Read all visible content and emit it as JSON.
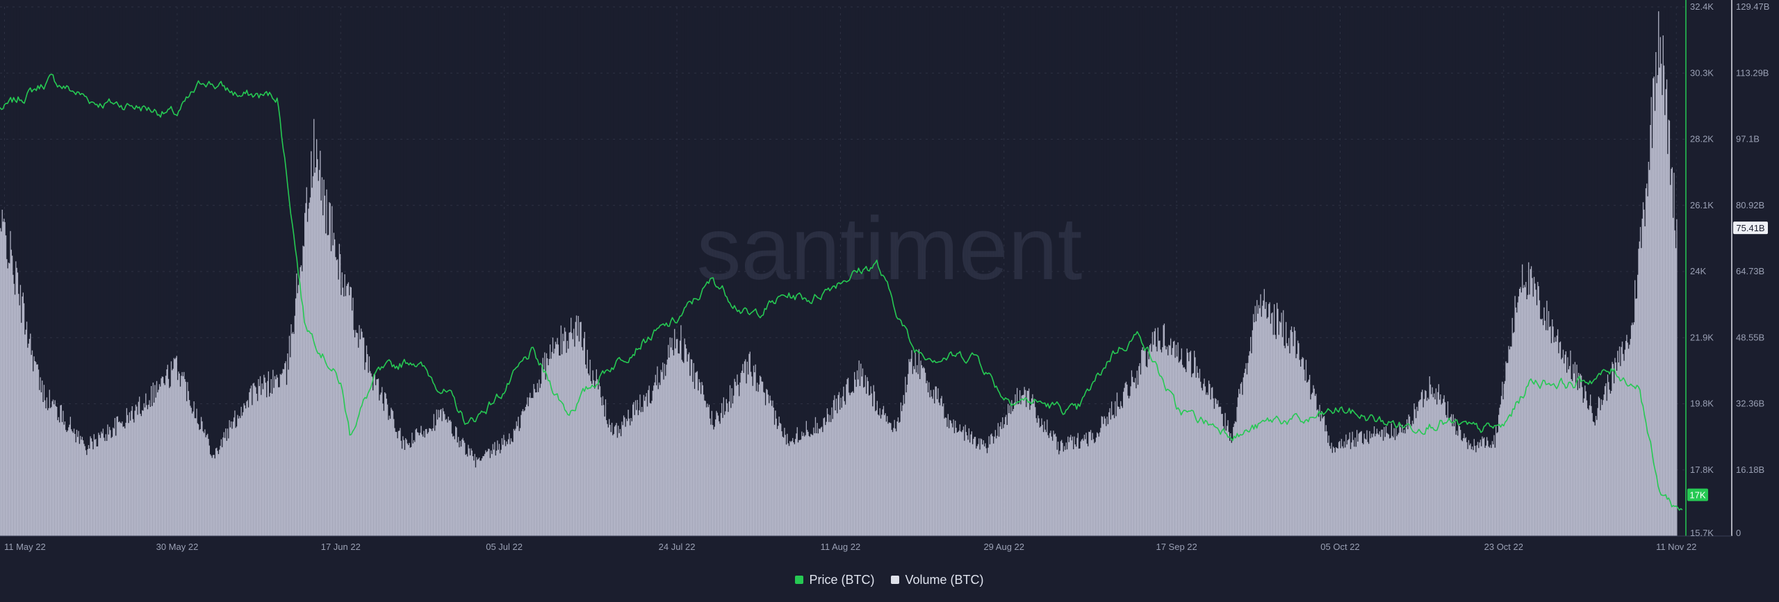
{
  "chart_data": {
    "type": "line",
    "watermark": "santiment",
    "x_ticks": [
      "11 May 22",
      "30 May 22",
      "17 Jun 22",
      "05 Jul 22",
      "24 Jul 22",
      "11 Aug 22",
      "29 Aug 22",
      "17 Sep 22",
      "05 Oct 22",
      "23 Oct 22",
      "11 Nov 22"
    ],
    "y_axis_price": {
      "ticks": [
        "32.4K",
        "30.3K",
        "28.2K",
        "26.1K",
        "24K",
        "21.9K",
        "19.8K",
        "17.8K",
        "15.7K"
      ],
      "ylim": [
        15700,
        32400
      ]
    },
    "y_axis_volume": {
      "ticks": [
        "129.47B",
        "113.29B",
        "97.1B",
        "80.92B",
        "64.73B",
        "48.55B",
        "32.36B",
        "16.18B",
        "0"
      ],
      "ylim": [
        0,
        129470000000
      ]
    },
    "badges": {
      "price": "17K",
      "volume": "75.41B"
    },
    "colors": {
      "price": "#26c953",
      "volume": "#b9bccd",
      "background": "#1b1e2e",
      "grid": "#2e3244"
    },
    "grid": true,
    "legend_position": "bottom-center",
    "series": [
      {
        "name": "Price (BTC)",
        "axis": "right-inner",
        "x": [
          "11 May 22",
          "16 May 22",
          "21 May 22",
          "25 May 22",
          "30 May 22",
          "02 Jun 22",
          "06 Jun 22",
          "10 Jun 22",
          "13 Jun 22",
          "17 Jun 22",
          "18 Jun 22",
          "21 Jun 22",
          "25 Jun 22",
          "29 Jun 22",
          "01 Jul 22",
          "05 Jul 22",
          "08 Jul 22",
          "12 Jul 22",
          "16 Jul 22",
          "20 Jul 22",
          "24 Jul 22",
          "28 Jul 22",
          "01 Aug 22",
          "05 Aug 22",
          "08 Aug 22",
          "11 Aug 22",
          "15 Aug 22",
          "19 Aug 22",
          "22 Aug 22",
          "26 Aug 22",
          "29 Aug 22",
          "02 Sep 22",
          "06 Sep 22",
          "10 Sep 22",
          "13 Sep 22",
          "17 Sep 22",
          "21 Sep 22",
          "24 Sep 22",
          "28 Sep 22",
          "01 Oct 22",
          "05 Oct 22",
          "09 Oct 22",
          "13 Oct 22",
          "16 Oct 22",
          "20 Oct 22",
          "23 Oct 22",
          "26 Oct 22",
          "31 Oct 22",
          "04 Nov 22",
          "07 Nov 22",
          "09 Nov 22",
          "11 Nov 22"
        ],
        "values": [
          29200,
          30100,
          29400,
          29300,
          29000,
          30100,
          29600,
          29600,
          22500,
          20500,
          18950,
          20800,
          21300,
          20100,
          19200,
          20300,
          21500,
          19600,
          20900,
          21800,
          22500,
          23800,
          22600,
          23300,
          23200,
          23800,
          24300,
          21600,
          21350,
          21400,
          20100,
          19900,
          19600,
          21500,
          22100,
          19700,
          19200,
          18900,
          19400,
          19300,
          19700,
          19350,
          19150,
          19300,
          19050,
          19150,
          20600,
          20500,
          20900,
          20400,
          17200,
          16600
        ]
      },
      {
        "name": "Volume (BTC)",
        "axis": "right-outer",
        "x": [
          "11 May 22",
          "15 May 22",
          "20 May 22",
          "25 May 22",
          "30 May 22",
          "03 Jun 22",
          "07 Jun 22",
          "11 Jun 22",
          "14 Jun 22",
          "17 Jun 22",
          "20 Jun 22",
          "24 Jun 22",
          "28 Jun 22",
          "02 Jul 22",
          "06 Jul 22",
          "10 Jul 22",
          "13 Jul 22",
          "17 Jul 22",
          "21 Jul 22",
          "24 Jul 22",
          "28 Jul 22",
          "01 Aug 22",
          "05 Aug 22",
          "09 Aug 22",
          "13 Aug 22",
          "17 Aug 22",
          "19 Aug 22",
          "23 Aug 22",
          "27 Aug 22",
          "31 Aug 22",
          "04 Sep 22",
          "08 Sep 22",
          "12 Sep 22",
          "15 Sep 22",
          "19 Sep 22",
          "23 Sep 22",
          "26 Sep 22",
          "30 Sep 22",
          "04 Oct 22",
          "08 Oct 22",
          "12 Oct 22",
          "15 Oct 22",
          "19 Oct 22",
          "22 Oct 22",
          "25 Oct 22",
          "29 Oct 22",
          "02 Nov 22",
          "06 Nov 22",
          "08 Nov 22",
          "09 Nov 22",
          "11 Nov 22"
        ],
        "values": [
          75000000000,
          36000000000,
          22000000000,
          30000000000,
          42000000000,
          20000000000,
          35000000000,
          40000000000,
          95000000000,
          65000000000,
          42000000000,
          22000000000,
          30000000000,
          18000000000,
          25000000000,
          45000000000,
          52000000000,
          25000000000,
          35000000000,
          50000000000,
          28000000000,
          42000000000,
          24000000000,
          28000000000,
          40000000000,
          26000000000,
          45000000000,
          28000000000,
          22000000000,
          36000000000,
          22000000000,
          25000000000,
          38000000000,
          50000000000,
          42000000000,
          25000000000,
          58000000000,
          48000000000,
          22000000000,
          25000000000,
          26000000000,
          38000000000,
          22000000000,
          24000000000,
          66000000000,
          48000000000,
          30000000000,
          50000000000,
          95000000000,
          128000000000,
          75410000000
        ]
      }
    ]
  }
}
